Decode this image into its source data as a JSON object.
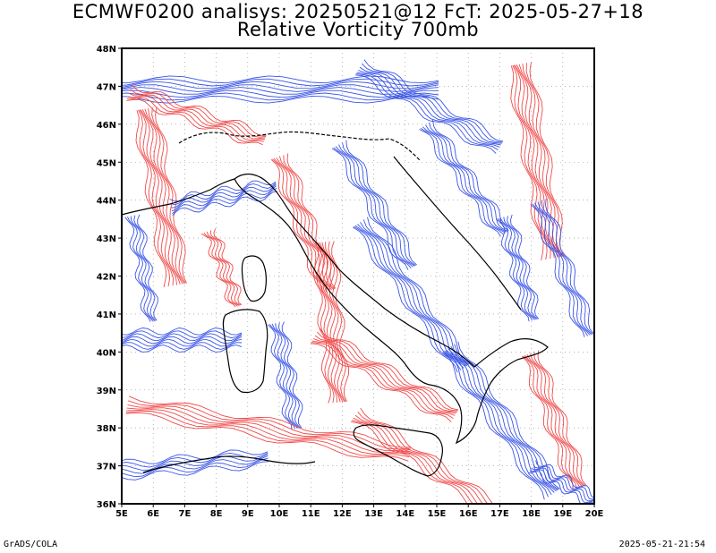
{
  "title": {
    "line1": "ECMWF0200 analisys: 20250521@12 FcT: 2025-05-27+18",
    "line2": "Relative Vorticity 700mb"
  },
  "map": {
    "projection": "lat-lon",
    "lon_range": [
      5,
      20
    ],
    "lat_range": [
      36,
      48
    ],
    "lon_labels": [
      "5E",
      "6E",
      "7E",
      "8E",
      "9E",
      "10E",
      "11E",
      "12E",
      "13E",
      "14E",
      "15E",
      "16E",
      "17E",
      "18E",
      "19E",
      "20E"
    ],
    "lat_labels": [
      "36N",
      "37N",
      "38N",
      "39N",
      "40N",
      "41N",
      "42N",
      "43N",
      "44N",
      "45N",
      "46N",
      "47N",
      "48N"
    ],
    "contour_colors": {
      "positive": "#f04a4a",
      "negative": "#3a55e6"
    },
    "grid": "dotted"
  },
  "footer": {
    "left": "GrADS/COLA",
    "right": "2025-05-21-21:54"
  }
}
